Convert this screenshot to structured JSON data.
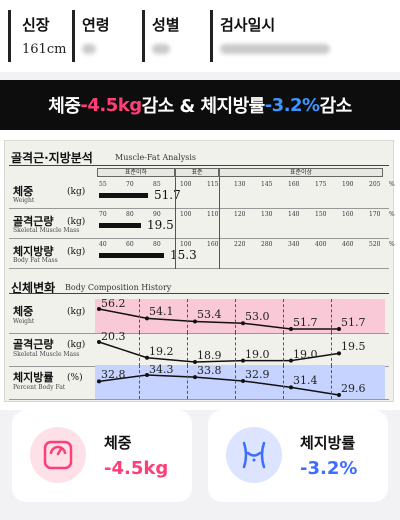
{
  "header": {
    "height_label": "신장",
    "height_value": "161cm",
    "age_label": "연령",
    "gender_label": "성별",
    "date_label": "검사일시"
  },
  "banner": {
    "part1": "체중 ",
    "weight_change": "-4.5kg",
    "part2": " 감소 & 체지방률 ",
    "fat_change": "-3.2%",
    "part3": " 감소"
  },
  "analysis": {
    "title": "골격근·지방분석",
    "subtitle": "Muscle-Fat Analysis",
    "ranges": [
      "표준이하",
      "표준",
      "표준이상"
    ],
    "rows": [
      {
        "label": "체중",
        "sub": "Weight",
        "unit": "(kg)",
        "scale": [
          "55",
          "70",
          "85",
          "100",
          "115",
          "130",
          "145",
          "160",
          "175",
          "190",
          "205"
        ],
        "value": "51.7",
        "fill_pct": 0.42
      },
      {
        "label": "골격근량",
        "sub": "Skeletal Muscle Mass",
        "unit": "(kg)",
        "scale": [
          "70",
          "80",
          "90",
          "100",
          "110",
          "120",
          "130",
          "140",
          "150",
          "160",
          "170"
        ],
        "value": "19.5",
        "fill_pct": 0.36
      },
      {
        "label": "체지방량",
        "sub": "Body Fat Mass",
        "unit": "(kg)",
        "scale": [
          "40",
          "60",
          "80",
          "100",
          "160",
          "220",
          "280",
          "340",
          "400",
          "460",
          "520"
        ],
        "value": "15.3",
        "fill_pct": 0.55
      }
    ],
    "percent_sign": "%"
  },
  "history": {
    "title": "신체변화",
    "subtitle": "Body Composition History",
    "rows": [
      {
        "label": "체중",
        "sub": "Weight",
        "unit": "(kg)",
        "values": [
          "56.2",
          "54.1",
          "53.4",
          "53.0",
          "51.7",
          "51.7"
        ],
        "color": "#f9c9d7"
      },
      {
        "label": "골격근량",
        "sub": "Skeletal Muscle Mass",
        "unit": "(kg)",
        "values": [
          "20.3",
          "19.2",
          "18.9",
          "19.0",
          "19.0",
          "19.5"
        ],
        "color": ""
      },
      {
        "label": "체지방률",
        "sub": "Percent Body Fat",
        "unit": "(%)",
        "values": [
          "32.8",
          "34.3",
          "33.8",
          "32.9",
          "31.4",
          "29.6"
        ],
        "color": "#c7d3ff"
      }
    ]
  },
  "cards": {
    "weight": {
      "title": "체중",
      "value": "-4.5kg",
      "icon": "scale-icon",
      "color": "#ff3d76"
    },
    "fat": {
      "title": "체지방률",
      "value": "-3.2%",
      "icon": "waist-icon",
      "color": "#3d6eff"
    }
  }
}
